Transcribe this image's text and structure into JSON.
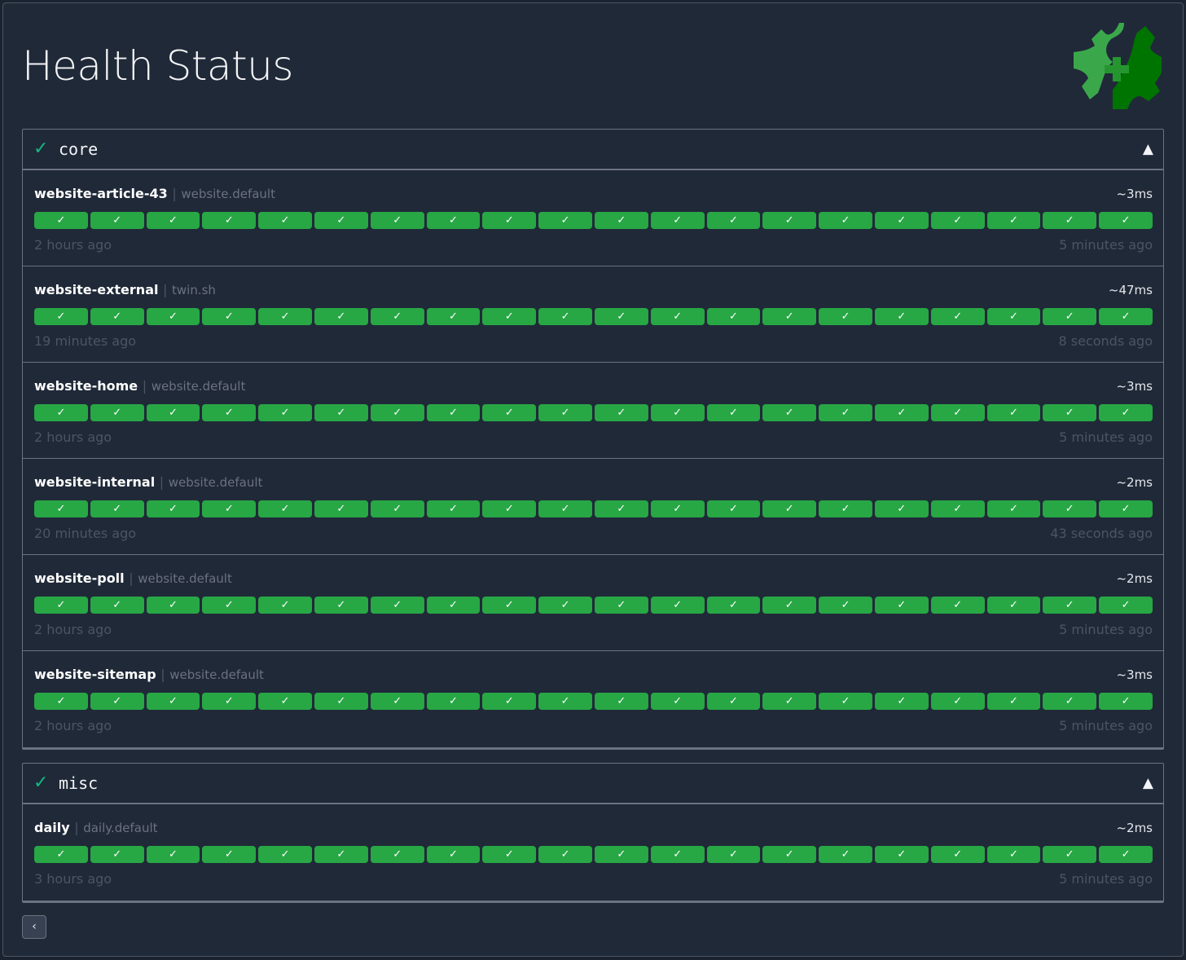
{
  "header": {
    "title": "Health Status",
    "logo_icon": "gear-health-plus-icon"
  },
  "colors": {
    "success": "#28a745",
    "group_check": "#10b981",
    "background": "#202938"
  },
  "groups": [
    {
      "name": "core",
      "status_icon": "✓",
      "collapse_icon": "▲",
      "endpoints": [
        {
          "name": "website-article-43",
          "group": "website.default",
          "response_time": "~3ms",
          "oldest": "2 hours ago",
          "newest": "5 minutes ago",
          "results": [
            true,
            true,
            true,
            true,
            true,
            true,
            true,
            true,
            true,
            true,
            true,
            true,
            true,
            true,
            true,
            true,
            true,
            true,
            true,
            true
          ]
        },
        {
          "name": "website-external",
          "group": "twin.sh",
          "response_time": "~47ms",
          "oldest": "19 minutes ago",
          "newest": "8 seconds ago",
          "results": [
            true,
            true,
            true,
            true,
            true,
            true,
            true,
            true,
            true,
            true,
            true,
            true,
            true,
            true,
            true,
            true,
            true,
            true,
            true,
            true
          ]
        },
        {
          "name": "website-home",
          "group": "website.default",
          "response_time": "~3ms",
          "oldest": "2 hours ago",
          "newest": "5 minutes ago",
          "results": [
            true,
            true,
            true,
            true,
            true,
            true,
            true,
            true,
            true,
            true,
            true,
            true,
            true,
            true,
            true,
            true,
            true,
            true,
            true,
            true
          ]
        },
        {
          "name": "website-internal",
          "group": "website.default",
          "response_time": "~2ms",
          "oldest": "20 minutes ago",
          "newest": "43 seconds ago",
          "results": [
            true,
            true,
            true,
            true,
            true,
            true,
            true,
            true,
            true,
            true,
            true,
            true,
            true,
            true,
            true,
            true,
            true,
            true,
            true,
            true
          ]
        },
        {
          "name": "website-poll",
          "group": "website.default",
          "response_time": "~2ms",
          "oldest": "2 hours ago",
          "newest": "5 minutes ago",
          "results": [
            true,
            true,
            true,
            true,
            true,
            true,
            true,
            true,
            true,
            true,
            true,
            true,
            true,
            true,
            true,
            true,
            true,
            true,
            true,
            true
          ]
        },
        {
          "name": "website-sitemap",
          "group": "website.default",
          "response_time": "~3ms",
          "oldest": "2 hours ago",
          "newest": "5 minutes ago",
          "results": [
            true,
            true,
            true,
            true,
            true,
            true,
            true,
            true,
            true,
            true,
            true,
            true,
            true,
            true,
            true,
            true,
            true,
            true,
            true,
            true
          ]
        }
      ]
    },
    {
      "name": "misc",
      "status_icon": "✓",
      "collapse_icon": "▲",
      "endpoints": [
        {
          "name": "daily",
          "group": "daily.default",
          "response_time": "~2ms",
          "oldest": "3 hours ago",
          "newest": "5 minutes ago",
          "results": [
            true,
            true,
            true,
            true,
            true,
            true,
            true,
            true,
            true,
            true,
            true,
            true,
            true,
            true,
            true,
            true,
            true,
            true,
            true,
            true
          ]
        }
      ]
    }
  ],
  "pagination": {
    "prev_label": "‹"
  }
}
